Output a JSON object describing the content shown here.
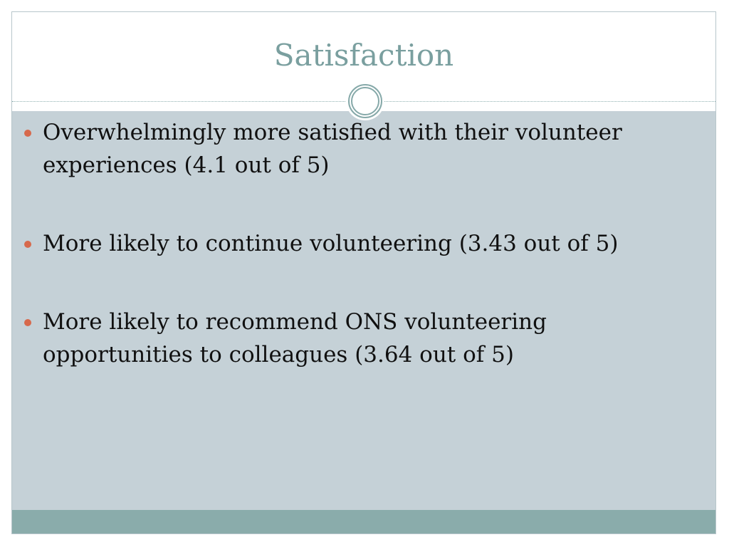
{
  "slide": {
    "title": "Satisfaction",
    "bullets": [
      {
        "text": "Overwhelmingly more satisfied with their volunteer experiences (4.1 out of 5)"
      },
      {
        "text": "More likely to continue volunteering (3.43 out of 5)"
      },
      {
        "text": "More likely to recommend ONS volunteering opportunities to colleagues (3.64 out of 5)"
      }
    ]
  },
  "colors": {
    "title": "#7a9f9f",
    "content_background": "#c5d1d7",
    "footer_band": "#8aacab",
    "bullet_dot": "#d7694c",
    "ornament_ring": "#86a9a9"
  },
  "icons": {
    "bullet": "bullet-dot-icon",
    "title_ornament": "double-circle-ornament-icon"
  }
}
